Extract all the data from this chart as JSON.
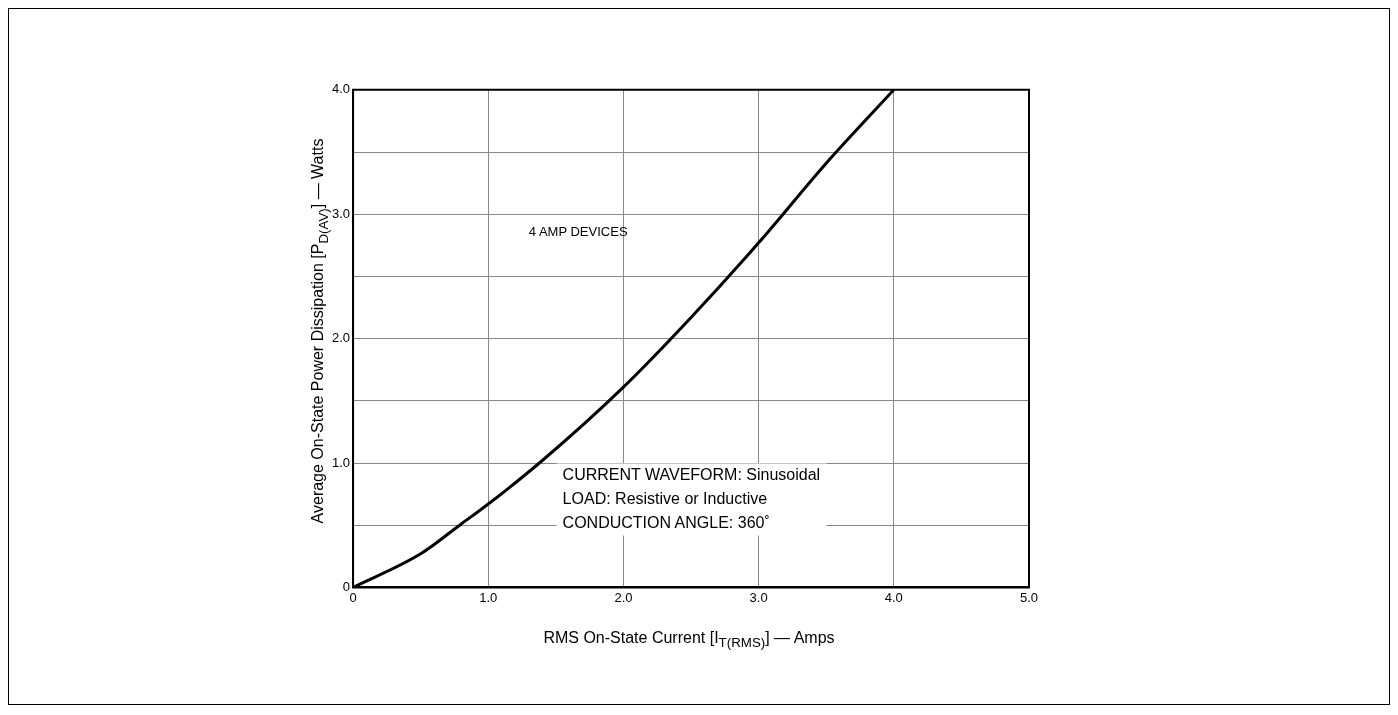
{
  "chart_data": {
    "type": "line",
    "xlabel": "RMS On-State Current [I$_{T(RMS)}$] — Amps",
    "ylabel": "Average On-State Power Dissipation [P$_{D(AV)}$] — Watts",
    "x": [
      0,
      0.5,
      0.8,
      1.0,
      1.4,
      2.0,
      2.5,
      3.0,
      3.5,
      4.0
    ],
    "series": [
      {
        "color": "#000000",
        "values": [
          0,
          0.27,
          0.51,
          0.67,
          1.02,
          1.61,
          2.17,
          2.77,
          3.41,
          4.0
        ]
      }
    ],
    "xlim": [
      0,
      5
    ],
    "xticks": [
      {
        "value": 0,
        "label": "0"
      },
      {
        "value": 1,
        "label": "1.0"
      },
      {
        "value": 2,
        "label": "2.0"
      },
      {
        "value": 3,
        "label": "3.0"
      },
      {
        "value": 4,
        "label": "4.0"
      },
      {
        "value": 5,
        "label": "5.0"
      }
    ],
    "ylim": [
      0,
      4
    ],
    "yticks": [
      {
        "value": 0,
        "label": "0"
      },
      {
        "value": 0.5,
        "label": null
      },
      {
        "value": 1,
        "label": "1.0"
      },
      {
        "value": 1.5,
        "label": null
      },
      {
        "value": 2,
        "label": "2.0"
      },
      {
        "value": 2.5,
        "label": null
      },
      {
        "value": 3,
        "label": "3.0"
      },
      {
        "value": 3.5,
        "label": null
      },
      {
        "value": 4,
        "label": "4.0"
      }
    ],
    "grid": true,
    "marker": "none",
    "line_style": "solid",
    "legend": false,
    "annotations": [
      "4 AMP DEVICES",
      "CURRENT WAVEFORM: Sinusoidal\nLOAD: Resistive or Inductive\nCONDUCTION ANGLE: 360˚"
    ]
  }
}
